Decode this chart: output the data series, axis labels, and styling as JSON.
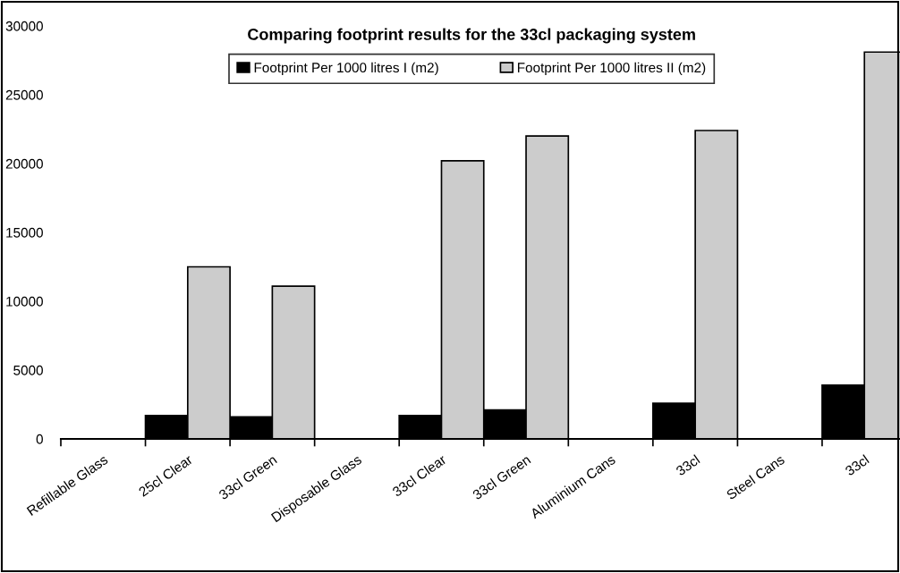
{
  "chart_data": {
    "type": "bar",
    "title": "Comparing footprint results for the 33cl packaging system",
    "categories": [
      "Refillable Glass",
      "25cl Clear",
      "33cl Green",
      "Disposable Glass",
      "33cl Clear",
      "33cl Green",
      "Aluminium Cans",
      "33cl",
      "Steel Cans",
      "33cl"
    ],
    "series": [
      {
        "name": "Footprint Per 1000 litres I (m2)",
        "color": "#000000",
        "values": [
          null,
          1700,
          1600,
          null,
          1700,
          2100,
          null,
          2600,
          null,
          3900
        ]
      },
      {
        "name": "Footprint Per 1000 litres II (m2)",
        "color": "#cccccc",
        "values": [
          null,
          12500,
          11100,
          null,
          20200,
          22000,
          null,
          22400,
          null,
          28100
        ]
      }
    ],
    "ylim": [
      0,
      30000
    ],
    "yticks": [
      0,
      5000,
      10000,
      15000,
      20000,
      25000,
      30000
    ],
    "grid": false,
    "legend": "top"
  }
}
